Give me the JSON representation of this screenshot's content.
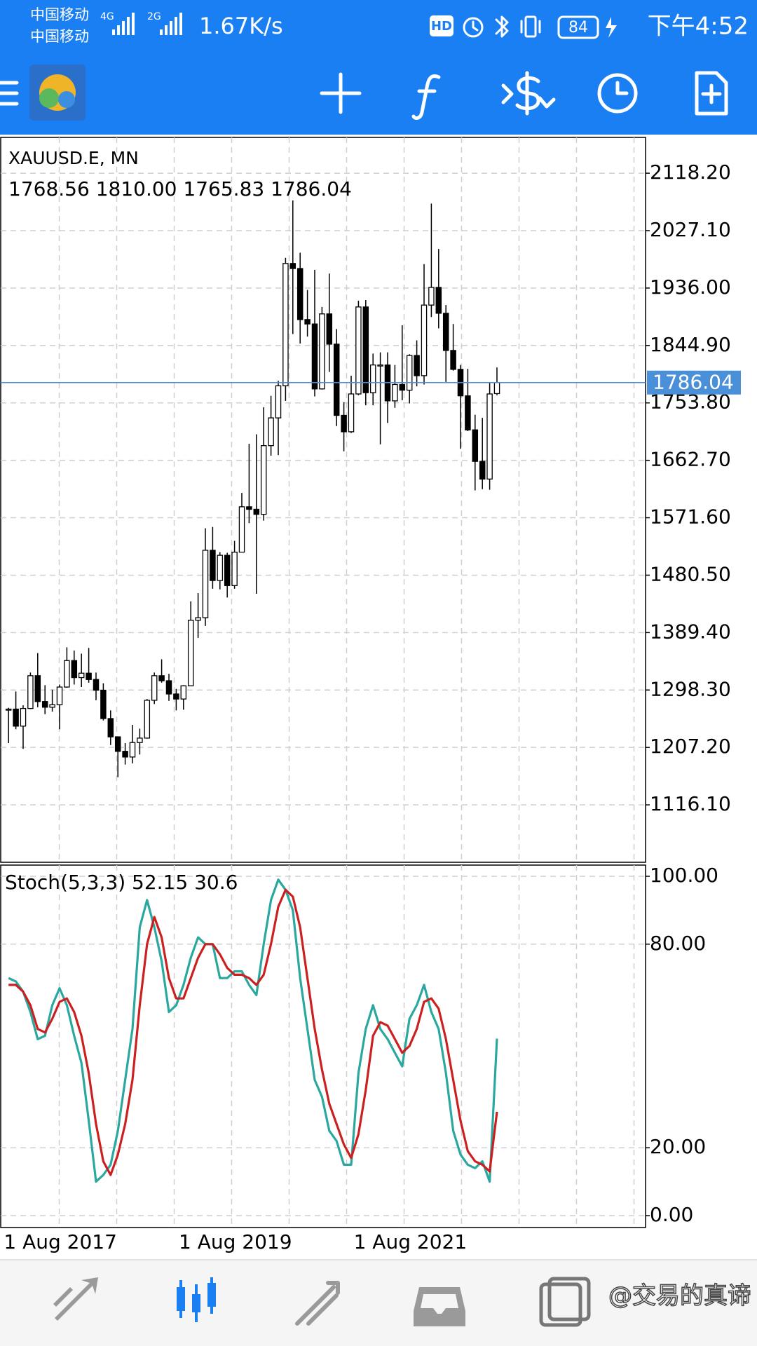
{
  "status_bar": {
    "carriers": [
      "中国移动",
      "中国移动"
    ],
    "networks": [
      "4G",
      "2G"
    ],
    "net_speed": "1.67K/s",
    "hd": "HD",
    "battery": "84",
    "time": "下午4:52"
  },
  "chart_data": [
    {
      "type": "candlestick",
      "title": "XAUUSD.E, MN",
      "ohlc_labels": [
        "1768.56",
        "1810.00",
        "1765.83",
        "1786.04"
      ],
      "x": [
        "2017-05-01",
        "2017-06-01",
        "2017-07-01",
        "2017-08-01",
        "2017-09-01",
        "2017-10-01",
        "2017-11-01",
        "2017-12-01",
        "2018-01-01",
        "2018-02-01",
        "2018-03-01",
        "2018-04-01",
        "2018-05-01",
        "2018-06-01",
        "2018-07-01",
        "2018-08-01",
        "2018-09-01",
        "2018-10-01",
        "2018-11-01",
        "2018-12-01",
        "2019-01-01",
        "2019-02-01",
        "2019-03-01",
        "2019-04-01",
        "2019-05-01",
        "2019-06-01",
        "2019-07-01",
        "2019-08-01",
        "2019-09-01",
        "2019-10-01",
        "2019-11-01",
        "2019-12-01",
        "2020-01-01",
        "2020-02-01",
        "2020-03-01",
        "2020-04-01",
        "2020-05-01",
        "2020-06-01",
        "2020-07-01",
        "2020-08-01",
        "2020-09-01",
        "2020-10-01",
        "2020-11-01",
        "2020-12-01",
        "2021-01-01",
        "2021-02-01",
        "2021-03-01",
        "2021-04-01",
        "2021-05-01",
        "2021-06-01",
        "2021-07-01",
        "2021-08-01",
        "2021-09-01",
        "2021-10-01",
        "2021-11-01",
        "2021-12-01",
        "2022-01-01",
        "2022-02-01",
        "2022-03-01",
        "2022-04-01",
        "2022-05-01",
        "2022-06-01",
        "2022-07-01",
        "2022-08-01",
        "2022-09-01",
        "2022-10-01",
        "2022-11-01",
        "2022-12-01"
      ],
      "open": [
        1268,
        1268,
        1241,
        1269,
        1321,
        1280,
        1271,
        1275,
        1303,
        1345,
        1318,
        1325,
        1315,
        1298,
        1253,
        1224,
        1201,
        1192,
        1215,
        1222,
        1282,
        1321,
        1313,
        1292,
        1284,
        1305,
        1409,
        1413,
        1520,
        1472,
        1512,
        1464,
        1517,
        1589,
        1585,
        1577,
        1686,
        1730,
        1781,
        1975,
        1967,
        1886,
        1879,
        1776,
        1895,
        1847,
        1734,
        1708,
        1768,
        1906,
        1770,
        1814,
        1814,
        1757,
        1783,
        1774,
        1829,
        1797,
        1909,
        1937,
        1896,
        1837,
        1807,
        1765,
        1711,
        1661,
        1633,
        1768.56
      ],
      "high": [
        1270,
        1296,
        1274,
        1326,
        1357,
        1306,
        1299,
        1307,
        1366,
        1361,
        1356,
        1365,
        1326,
        1309,
        1266,
        1224,
        1214,
        1243,
        1237,
        1284,
        1326,
        1347,
        1324,
        1300,
        1306,
        1439,
        1452,
        1555,
        1557,
        1517,
        1516,
        1535,
        1611,
        1689,
        1704,
        1747,
        1765,
        1789,
        1984,
        2075,
        1992,
        1933,
        1965,
        1906,
        1959,
        1871,
        1755,
        1797,
        1916,
        1917,
        1832,
        1834,
        1834,
        1814,
        1877,
        1831,
        1853,
        1974,
        2070,
        1998,
        1909,
        1879,
        1814,
        1808,
        1735,
        1730,
        1786,
        1810
      ],
      "low": [
        1214,
        1236,
        1205,
        1268,
        1271,
        1260,
        1264,
        1236,
        1302,
        1307,
        1303,
        1310,
        1282,
        1250,
        1211,
        1160,
        1180,
        1182,
        1196,
        1221,
        1276,
        1310,
        1281,
        1266,
        1267,
        1305,
        1381,
        1400,
        1459,
        1458,
        1445,
        1459,
        1517,
        1563,
        1451,
        1567,
        1670,
        1671,
        1757,
        1863,
        1848,
        1859,
        1764,
        1775,
        1803,
        1717,
        1677,
        1706,
        1766,
        1750,
        1750,
        1688,
        1722,
        1746,
        1758,
        1753,
        1780,
        1783,
        1890,
        1872,
        1787,
        1805,
        1681,
        1709,
        1615,
        1617,
        1616,
        1765.83
      ],
      "close": [
        1268,
        1241,
        1269,
        1321,
        1280,
        1271,
        1275,
        1303,
        1345,
        1318,
        1325,
        1315,
        1298,
        1253,
        1224,
        1201,
        1192,
        1215,
        1222,
        1282,
        1321,
        1313,
        1292,
        1284,
        1305,
        1409,
        1413,
        1520,
        1472,
        1512,
        1464,
        1517,
        1589,
        1585,
        1577,
        1686,
        1730,
        1781,
        1975,
        1967,
        1886,
        1879,
        1776,
        1895,
        1847,
        1734,
        1708,
        1768,
        1906,
        1770,
        1814,
        1814,
        1757,
        1783,
        1774,
        1829,
        1797,
        1909,
        1937,
        1896,
        1837,
        1807,
        1765,
        1711,
        1661,
        1633,
        1768,
        1786.04
      ],
      "ylim": [
        1025,
        2175
      ],
      "yticks": [
        {
          "value": 2118.2,
          "label": "2118.20"
        },
        {
          "value": 2027.1,
          "label": "2027.10"
        },
        {
          "value": 1936,
          "label": "1936.00"
        },
        {
          "value": 1844.9,
          "label": "1844.90"
        },
        {
          "value": 1753.8,
          "label": "1753.80"
        },
        {
          "value": 1662.7,
          "label": "1662.70"
        },
        {
          "value": 1571.6,
          "label": "1571.60"
        },
        {
          "value": 1480.5,
          "label": "1480.50"
        },
        {
          "value": 1389.4,
          "label": "1389.40"
        },
        {
          "value": 1298.3,
          "label": "1298.30"
        },
        {
          "value": 1207.2,
          "label": "1207.20"
        },
        {
          "value": 1116.1,
          "label": "1116.10"
        }
      ],
      "xticks": [
        {
          "value": "2017-08-01",
          "label": "1 Aug 2017"
        },
        {
          "value": "2019-08-01",
          "label": "1 Aug 2019"
        },
        {
          "value": "2021-08-01",
          "label": "1 Aug 2021"
        }
      ],
      "grid": true,
      "price_line_color": "#4a90d9",
      "up_color": "#ffffff",
      "down_color": "#000000"
    },
    {
      "type": "line",
      "title": "Stoch(5,3,3)",
      "series": [
        {
          "color": "#2aa8a0",
          "values": [
            70,
            69,
            66,
            60,
            52,
            53,
            62,
            67,
            62,
            53,
            45,
            28,
            10,
            12,
            15,
            25,
            40,
            55,
            85,
            93,
            85,
            75,
            60,
            62,
            68,
            76,
            82,
            80,
            80,
            70,
            70,
            72,
            72,
            68,
            65,
            80,
            93,
            99,
            96,
            90,
            70,
            55,
            40,
            35,
            25,
            22,
            15,
            15,
            42,
            55,
            62,
            55,
            52,
            48,
            44,
            58,
            62,
            68,
            60,
            55,
            42,
            25,
            18,
            15,
            14,
            16,
            10,
            52.15
          ]
        },
        {
          "color": "#cc2020",
          "values": [
            68,
            68,
            66,
            62,
            55,
            54,
            58,
            63,
            64,
            60,
            53,
            42,
            27,
            16,
            12,
            18,
            27,
            40,
            62,
            80,
            88,
            82,
            70,
            64,
            64,
            70,
            76,
            80,
            80,
            77,
            73,
            71,
            71,
            70,
            68,
            71,
            80,
            91,
            96,
            94,
            85,
            70,
            55,
            43,
            33,
            27,
            21,
            17,
            24,
            37,
            53,
            57,
            56,
            52,
            48,
            50,
            55,
            63,
            64,
            61,
            52,
            40,
            28,
            19,
            16,
            15,
            13,
            30.6
          ]
        }
      ],
      "ylim": [
        -3.5,
        103.3
      ],
      "yticks": [
        {
          "value": 100,
          "label": "100.00"
        },
        {
          "value": 80,
          "label": "80.00"
        },
        {
          "value": 20,
          "label": "20.00"
        },
        {
          "value": 0,
          "label": "0.00"
        }
      ],
      "grid": true
    }
  ],
  "watermark": "@交易的真谛"
}
